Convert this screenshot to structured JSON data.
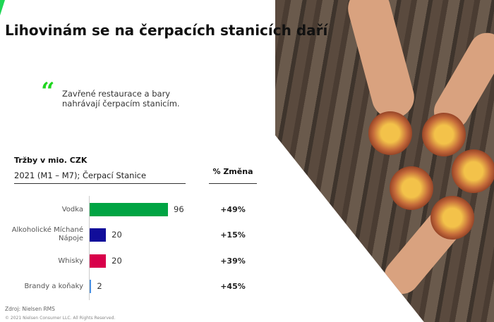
{
  "title": "Lihovinám se na čerpacích stanicích daří",
  "quote": "Zavřené restaurace  a bary nahrávají čerpacím stanicím.",
  "chart_data": {
    "type": "bar",
    "orientation": "horizontal",
    "title": "Tržby v mio. CZK",
    "subtitle": "2021 (M1 – M7); Čerpací Stanice",
    "categories": [
      "Vodka",
      "Alkoholické Míchané Nápoje",
      "Whisky",
      "Brandy a koňaky"
    ],
    "values": [
      96,
      20,
      20,
      2
    ],
    "colors": [
      "#00a443",
      "#110d9a",
      "#d8004a",
      "#4a90e2"
    ],
    "change_header": "% Změna",
    "changes": [
      "+49%",
      "+15%",
      "+39%",
      "+45%"
    ]
  },
  "source": "Zdroj:  Nielsen RMS",
  "copyright": "© 2021 Nielsen Consumer LLC. All Rights Reserved.",
  "accent": "#1fd655"
}
